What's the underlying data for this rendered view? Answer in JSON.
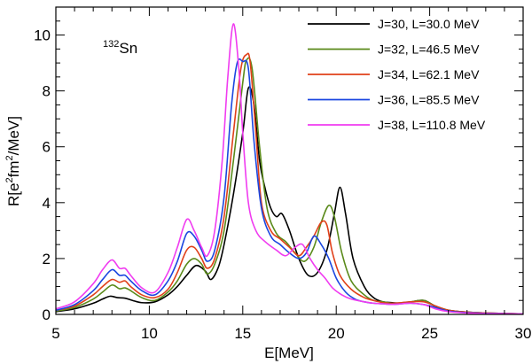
{
  "chart_data": {
    "type": "line",
    "annotation": {
      "mass": "132",
      "element": "Sn"
    },
    "xlabel": "E[MeV]",
    "ylabel_parts": [
      "R[e",
      "2",
      "fm",
      "2",
      "/MeV]"
    ],
    "xlim": [
      5,
      30
    ],
    "ylim": [
      0,
      11
    ],
    "xticks": [
      5,
      10,
      15,
      20,
      25,
      30
    ],
    "yticks": [
      0,
      2,
      4,
      6,
      8,
      10
    ],
    "grid": false,
    "legend_position": "top-right",
    "series": [
      {
        "name": "J=30, L=30.0 MeV",
        "color": "#000000",
        "x": [
          5,
          6,
          7,
          7.5,
          7.9,
          8.3,
          8.7,
          9.1,
          9.6,
          10.3,
          11.0,
          11.5,
          12.0,
          12.5,
          13.0,
          13.3,
          13.7,
          14.0,
          14.5,
          15.0,
          15.3,
          15.6,
          15.9,
          16.2,
          16.5,
          16.8,
          17.1,
          17.5,
          18.0,
          18.5,
          19.0,
          19.5,
          19.9,
          20.2,
          20.5,
          20.9,
          21.5,
          22.0,
          22.5,
          23.0,
          23.5,
          24.0,
          24.7,
          25.3,
          26.0,
          27.0,
          28.0,
          30.0
        ],
        "y": [
          0.1,
          0.2,
          0.4,
          0.55,
          0.65,
          0.6,
          0.58,
          0.5,
          0.42,
          0.45,
          0.7,
          1.0,
          1.4,
          1.75,
          1.55,
          1.25,
          1.7,
          2.5,
          4.3,
          6.5,
          8.1,
          7.5,
          5.5,
          4.5,
          3.8,
          3.5,
          3.6,
          3.0,
          2.0,
          1.4,
          1.5,
          2.3,
          3.6,
          4.55,
          3.6,
          2.0,
          1.0,
          0.6,
          0.45,
          0.42,
          0.4,
          0.45,
          0.5,
          0.3,
          0.15,
          0.08,
          0.05,
          0.02
        ]
      },
      {
        "name": "J=32, L=46.5 MeV",
        "color": "#5a8a1a",
        "x": [
          5,
          6,
          7,
          7.5,
          8.0,
          8.4,
          8.7,
          9.0,
          9.6,
          10.3,
          11.0,
          11.5,
          12.0,
          12.4,
          12.8,
          13.1,
          13.5,
          14.0,
          14.5,
          15.0,
          15.2,
          15.5,
          15.9,
          16.3,
          16.8,
          17.3,
          17.8,
          18.3,
          18.8,
          19.2,
          19.6,
          19.9,
          20.3,
          20.8,
          21.5,
          22.0,
          22.5,
          23.0,
          23.5,
          24.0,
          24.7,
          25.3,
          26.0,
          27.0,
          28.0,
          30.0
        ],
        "y": [
          0.12,
          0.25,
          0.55,
          0.8,
          1.05,
          0.92,
          0.95,
          0.85,
          0.6,
          0.5,
          0.8,
          1.2,
          1.8,
          2.0,
          1.8,
          1.45,
          1.8,
          3.0,
          5.5,
          8.3,
          9.1,
          8.8,
          6.0,
          3.8,
          2.9,
          2.6,
          2.2,
          1.9,
          2.4,
          3.3,
          3.9,
          3.5,
          2.2,
          1.2,
          0.7,
          0.5,
          0.45,
          0.4,
          0.42,
          0.45,
          0.5,
          0.3,
          0.15,
          0.08,
          0.05,
          0.02
        ]
      },
      {
        "name": "J=34, L=62.1 MeV",
        "color": "#e0401a",
        "x": [
          5,
          6,
          7,
          7.5,
          8.0,
          8.4,
          8.7,
          9.0,
          9.6,
          10.3,
          11.0,
          11.5,
          12.0,
          12.4,
          12.8,
          13.1,
          13.5,
          14.0,
          14.5,
          14.9,
          15.2,
          15.4,
          15.7,
          16.0,
          16.5,
          17.0,
          17.5,
          18.0,
          18.4,
          18.8,
          19.2,
          19.5,
          19.8,
          20.2,
          20.8,
          21.5,
          22.0,
          22.5,
          23.0,
          23.5,
          24.0,
          24.7,
          25.3,
          26.0,
          27.0,
          28.0,
          30.0
        ],
        "y": [
          0.15,
          0.3,
          0.7,
          1.0,
          1.25,
          1.15,
          1.2,
          1.0,
          0.7,
          0.6,
          0.9,
          1.5,
          2.3,
          2.4,
          2.0,
          1.65,
          2.0,
          3.5,
          6.5,
          8.8,
          9.3,
          9.0,
          6.5,
          4.0,
          3.0,
          2.7,
          2.4,
          2.1,
          2.4,
          2.8,
          3.3,
          3.2,
          2.2,
          1.4,
          0.9,
          0.6,
          0.5,
          0.42,
          0.4,
          0.42,
          0.45,
          0.45,
          0.3,
          0.15,
          0.08,
          0.05,
          0.02
        ]
      },
      {
        "name": "J=36, L=85.5 MeV",
        "color": "#1a46e0",
        "x": [
          5,
          6,
          7,
          7.5,
          8.0,
          8.4,
          8.7,
          9.0,
          9.6,
          10.3,
          11.0,
          11.5,
          12.0,
          12.4,
          12.8,
          13.1,
          13.5,
          14.0,
          14.4,
          14.7,
          15.0,
          15.3,
          15.6,
          16.0,
          16.5,
          17.0,
          17.5,
          18.0,
          18.4,
          18.8,
          19.2,
          19.6,
          20.0,
          20.5,
          21.0,
          21.5,
          22.0,
          22.5,
          23.0,
          23.5,
          24.0,
          24.7,
          25.3,
          26.0,
          27.0,
          28.0,
          30.0
        ],
        "y": [
          0.15,
          0.35,
          0.85,
          1.25,
          1.6,
          1.4,
          1.4,
          1.2,
          0.85,
          0.7,
          1.2,
          1.9,
          2.9,
          2.8,
          2.3,
          1.9,
          2.3,
          4.2,
          7.5,
          9.0,
          9.05,
          8.8,
          6.2,
          3.8,
          2.8,
          2.5,
          2.2,
          2.0,
          2.2,
          2.8,
          2.5,
          2.0,
          1.3,
          0.8,
          0.55,
          0.45,
          0.4,
          0.38,
          0.36,
          0.38,
          0.4,
          0.35,
          0.25,
          0.12,
          0.06,
          0.04,
          0.02
        ]
      },
      {
        "name": "J=38, L=110.8 MeV",
        "color": "#f03cf0",
        "x": [
          5,
          6,
          7,
          7.5,
          8.0,
          8.4,
          8.7,
          9.0,
          9.6,
          10.3,
          11.0,
          11.5,
          12.0,
          12.4,
          12.8,
          13.1,
          13.5,
          13.9,
          14.2,
          14.5,
          14.8,
          15.0,
          15.3,
          15.7,
          16.2,
          16.8,
          17.3,
          17.8,
          18.2,
          18.6,
          19.0,
          19.4,
          19.8,
          20.3,
          20.8,
          21.5,
          22.0,
          22.5,
          23.0,
          23.5,
          24.0,
          24.7,
          25.3,
          26.0,
          27.0,
          28.0,
          30.0
        ],
        "y": [
          0.2,
          0.45,
          1.1,
          1.6,
          1.95,
          1.65,
          1.65,
          1.4,
          0.95,
          0.8,
          1.5,
          2.4,
          3.4,
          3.0,
          2.4,
          2.1,
          3.0,
          5.5,
          8.5,
          10.4,
          8.7,
          6.5,
          4.0,
          3.0,
          2.6,
          2.3,
          2.1,
          2.4,
          2.5,
          2.0,
          1.6,
          1.3,
          0.95,
          0.7,
          0.55,
          0.45,
          0.4,
          0.38,
          0.36,
          0.38,
          0.4,
          0.35,
          0.2,
          0.1,
          0.05,
          0.03,
          0.02
        ]
      }
    ]
  }
}
